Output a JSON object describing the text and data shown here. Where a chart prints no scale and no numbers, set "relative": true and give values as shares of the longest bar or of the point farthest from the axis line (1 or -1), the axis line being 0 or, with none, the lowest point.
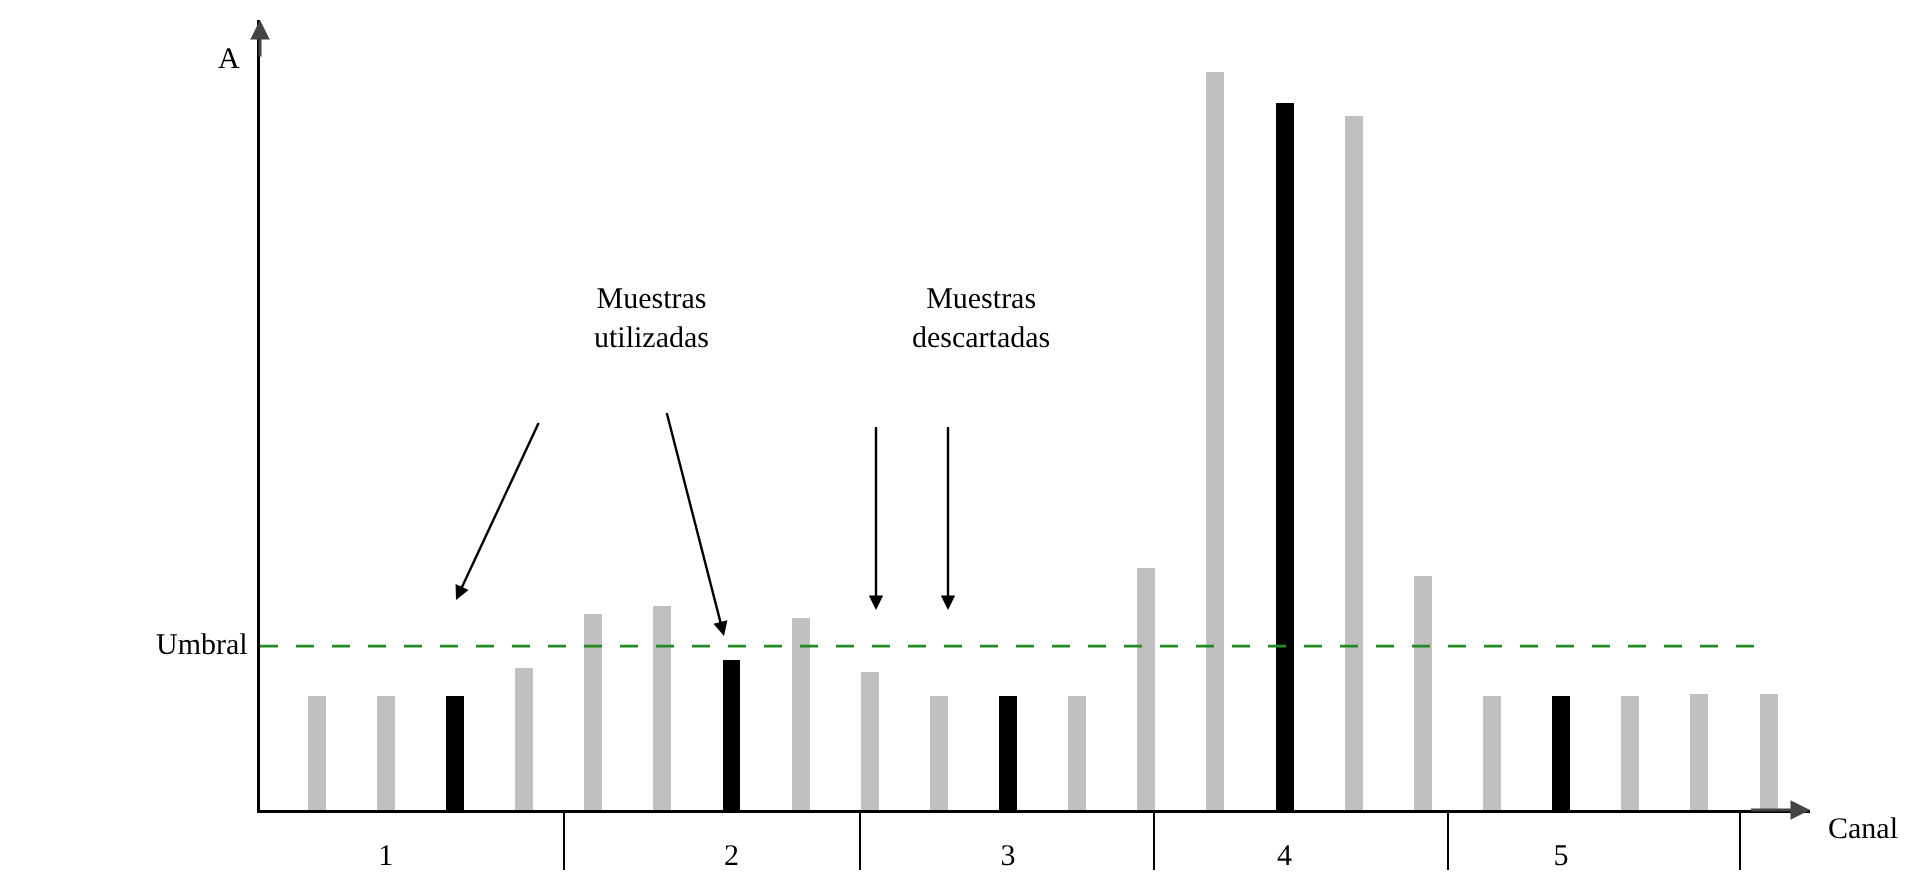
{
  "chart_data": {
    "type": "bar",
    "relative": true,
    "xlabel": "Canal",
    "ylabel": "A",
    "categories": [
      null,
      "1",
      null,
      null,
      null,
      null,
      "2",
      null,
      null,
      null,
      "3",
      null,
      null,
      null,
      "4",
      null,
      null,
      null,
      "5",
      null,
      null,
      null
    ],
    "values": [
      0.154,
      0.154,
      0.154,
      0.192,
      0.266,
      0.276,
      0.203,
      0.26,
      0.187,
      0.154,
      0.154,
      0.154,
      0.328,
      1,
      0.957,
      0.94,
      0.317,
      0.154,
      0.154,
      0.154,
      0.157,
      0.157
    ],
    "colors": [
      "#c0c0c0",
      "#c0c0c0",
      "#000000",
      "#c0c0c0",
      "#c0c0c0",
      "#c0c0c0",
      "#000000",
      "#c0c0c0",
      "#c0c0c0",
      "#c0c0c0",
      "#000000",
      "#c0c0c0",
      "#c0c0c0",
      "#c0c0c0",
      "#000000",
      "#c0c0c0",
      "#c0c0c0",
      "#c0c0c0",
      "#000000",
      "#c0c0c0",
      "#c0c0c0",
      "#c0c0c0"
    ],
    "ref_lines": [
      {
        "axis": "y",
        "value": 0.222,
        "label": "Umbral",
        "color": "#228b22",
        "line_style": "dashed"
      }
    ],
    "annotations": [
      "Muestras utilizadas",
      "Muestras descartadas"
    ]
  }
}
